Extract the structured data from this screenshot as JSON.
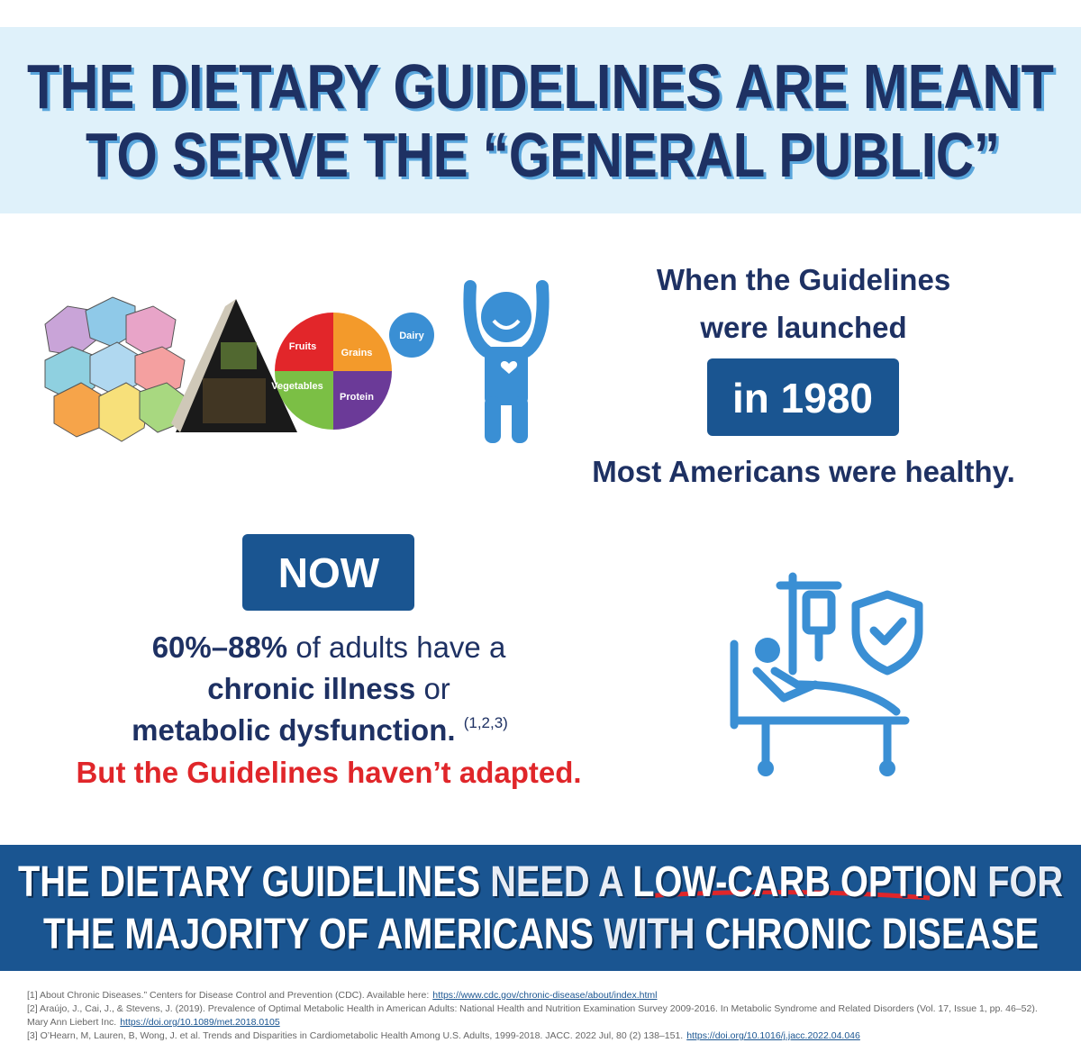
{
  "header": {
    "line1": "THE DIETARY GUIDELINES ARE MEANT",
    "line2": "TO SERVE THE “GENERAL PUBLIC”"
  },
  "plate": {
    "fruits": "Fruits",
    "grains": "Grains",
    "vegetables": "Vegetables",
    "protein": "Protein",
    "dairy": "Dairy"
  },
  "then": {
    "line1": "When the Guidelines",
    "line2": "were launched",
    "badge": "in 1980",
    "statement": "Most Americans were healthy."
  },
  "now": {
    "badge": "NOW",
    "stat": "60%–88%",
    "text1": "of adults have a",
    "bold2": "chronic illness",
    "text2": "or",
    "bold3": "metabolic dysfunction.",
    "cite": "(1,2,3)",
    "alert": "But the Guidelines haven’t adapted."
  },
  "banner": {
    "line1": [
      "THE DIETARY GUIDELINES",
      "NEED A",
      "LOW-CARB OPTION",
      "FOR"
    ],
    "line2": [
      "THE MAJORITY OF AMERICANS",
      "WITH",
      "CHRONIC DISEASE"
    ]
  },
  "references": [
    {
      "text": "[1] About Chronic Diseases.” Centers for Disease Control and Prevention (CDC). Available here:",
      "link": "https://www.cdc.gov/chronic-disease/about/index.html"
    },
    {
      "text": "[2] Araújo, J., Cai, J., & Stevens, J. (2019). Prevalence of Optimal Metabolic Health in American Adults: National Health and Nutrition Examination Survey 2009-2016. In Metabolic Syndrome and Related Disorders (Vol. 17, Issue 1, pp. 46–52). Mary Ann Liebert Inc.",
      "link": "https://doi.org/10.1089/met.2018.0105"
    },
    {
      "text": "[3] O’Hearn, M, Lauren, B, Wong, J. et al. Trends and Disparities in Cardiometabolic Health Among U.S. Adults, 1999-2018. JACC. 2022 Jul, 80 (2) 138–151.",
      "link": "https://doi.org/10.1016/j.jacc.2022.04.046"
    }
  ]
}
